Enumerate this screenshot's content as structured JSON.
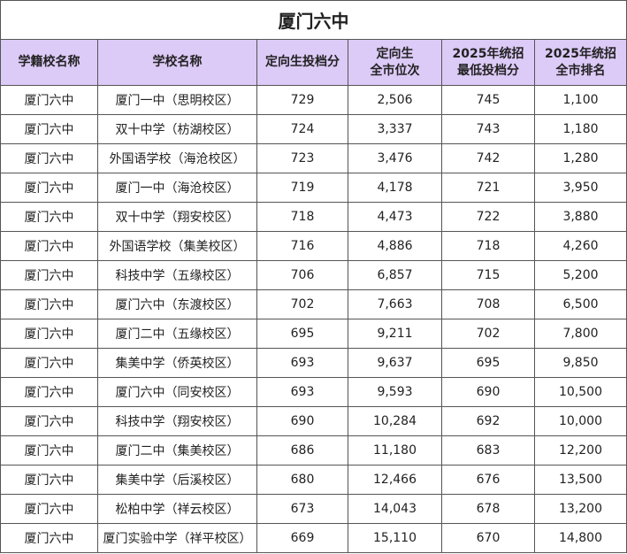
{
  "title": "厦门六中",
  "table": {
    "headers": [
      [
        "学籍校名称"
      ],
      [
        "学校名称"
      ],
      [
        "定向生投档分"
      ],
      [
        "定向生",
        "全市位次"
      ],
      [
        "2025年统招",
        "最低投档分"
      ],
      [
        "2025年统招",
        "全市排名"
      ]
    ],
    "rows": [
      [
        "厦门六中",
        "厦门一中（思明校区）",
        "729",
        "2,506",
        "745",
        "1,100"
      ],
      [
        "厦门六中",
        "双十中学（枋湖校区）",
        "724",
        "3,337",
        "743",
        "1,180"
      ],
      [
        "厦门六中",
        "外国语学校（海沧校区）",
        "723",
        "3,476",
        "742",
        "1,280"
      ],
      [
        "厦门六中",
        "厦门一中（海沧校区）",
        "719",
        "4,178",
        "721",
        "3,950"
      ],
      [
        "厦门六中",
        "双十中学（翔安校区）",
        "718",
        "4,473",
        "722",
        "3,880"
      ],
      [
        "厦门六中",
        "外国语学校（集美校区）",
        "716",
        "4,886",
        "718",
        "4,260"
      ],
      [
        "厦门六中",
        "科技中学（五缘校区）",
        "706",
        "6,857",
        "715",
        "5,200"
      ],
      [
        "厦门六中",
        "厦门六中（东渡校区）",
        "702",
        "7,663",
        "708",
        "6,500"
      ],
      [
        "厦门六中",
        "厦门二中（五缘校区）",
        "695",
        "9,211",
        "702",
        "7,800"
      ],
      [
        "厦门六中",
        "集美中学（侨英校区）",
        "693",
        "9,637",
        "695",
        "9,850"
      ],
      [
        "厦门六中",
        "厦门六中（同安校区）",
        "693",
        "9,593",
        "690",
        "10,500"
      ],
      [
        "厦门六中",
        "科技中学（翔安校区）",
        "690",
        "10,284",
        "692",
        "10,000"
      ],
      [
        "厦门六中",
        "厦门二中（集美校区）",
        "686",
        "11,180",
        "683",
        "12,200"
      ],
      [
        "厦门六中",
        "集美中学（后溪校区）",
        "680",
        "12,466",
        "676",
        "13,500"
      ],
      [
        "厦门六中",
        "松柏中学（祥云校区）",
        "673",
        "14,043",
        "678",
        "13,200"
      ],
      [
        "厦门六中",
        "厦门实验中学（祥平校区）",
        "669",
        "15,110",
        "670",
        "14,800"
      ]
    ]
  }
}
